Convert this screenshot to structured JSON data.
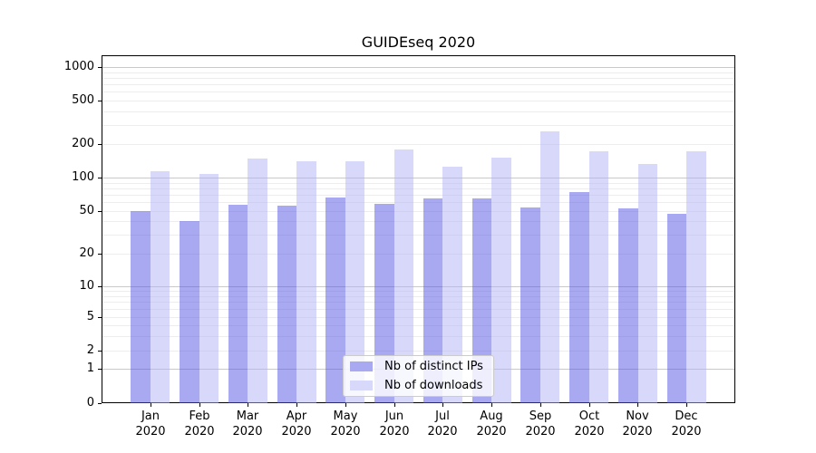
{
  "figure": {
    "background": "#ffffff"
  },
  "chart_data": {
    "type": "bar",
    "title": "GUIDEseq 2020",
    "categories": [
      "Jan 2020",
      "Feb 2020",
      "Mar 2020",
      "Apr 2020",
      "May 2020",
      "Jun 2020",
      "Jul 2020",
      "Aug 2020",
      "Sep 2020",
      "Oct 2020",
      "Nov 2020",
      "Dec 2020"
    ],
    "series": [
      {
        "name": "Nb of distinct IPs",
        "swatch_color": "#a9a9f2",
        "fill": "rgba(84,84,229,0.5)",
        "values": [
          50,
          40,
          57,
          56,
          66,
          58,
          65,
          65,
          54,
          74,
          53,
          47
        ]
      },
      {
        "name": "Nb of downloads",
        "swatch_color": "#d8d8fa",
        "fill": "rgba(178,178,247,0.5)",
        "values": [
          114,
          108,
          149,
          141,
          139,
          180,
          126,
          151,
          262,
          173,
          133,
          173
        ]
      }
    ],
    "yscale": "symlog",
    "yticks": [
      0,
      1,
      2,
      5,
      10,
      20,
      50,
      100,
      200,
      500,
      1000
    ],
    "ylim": [
      0,
      1250
    ],
    "xlabel": "",
    "ylabel": "",
    "grid": true,
    "legend_position": "lower center",
    "colors": {
      "grid_major": "#c9c9c9",
      "grid_minor": "#ededed",
      "spine": "#000000",
      "text": "#000000",
      "legend_border": "#cccccc"
    }
  }
}
